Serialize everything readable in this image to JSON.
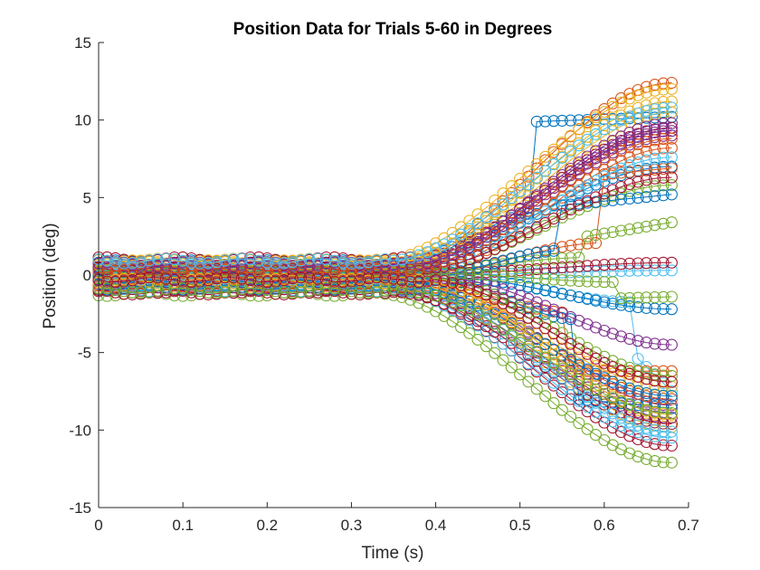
{
  "chart_data": {
    "type": "line",
    "title": "Position Data for Trials 5-60 in Degrees",
    "xlabel": "Time (s)",
    "ylabel": "Position (deg)",
    "xlim": [
      0,
      0.7
    ],
    "ylim": [
      -15,
      15
    ],
    "xticks": [
      0,
      0.1,
      0.2,
      0.3,
      0.4,
      0.5,
      0.6,
      0.7
    ],
    "xtick_labels": [
      "0",
      "0.1",
      "0.2",
      "0.3",
      "0.4",
      "0.5",
      "0.6",
      "0.7"
    ],
    "yticks": [
      -15,
      -10,
      -5,
      0,
      5,
      10,
      15
    ],
    "ytick_labels": [
      "-15",
      "-10",
      "-5",
      "0",
      "5",
      "10",
      "15"
    ],
    "grid": false,
    "legend": "none",
    "marker": "open circle",
    "sample_interval_s": 0.01,
    "end_time_s": 0.68,
    "color_order": [
      "#0072BD",
      "#D95319",
      "#EDB120",
      "#7E2F8E",
      "#77AC30",
      "#4DBEEE",
      "#A2142F"
    ],
    "series": [
      {
        "start": 0.8,
        "drift_start": 0.36,
        "jump_t": 0.52,
        "jump_to": 9.9,
        "final": 10.2
      },
      {
        "start": 0.3,
        "drift_start": 0.34,
        "jump_t": null,
        "jump_to": null,
        "final": 12.4
      },
      {
        "start": -0.6,
        "drift_start": 0.36,
        "jump_t": null,
        "jump_to": null,
        "final": -9.8
      },
      {
        "start": 0.5,
        "drift_start": 0.37,
        "jump_t": null,
        "jump_to": null,
        "final": 9.0
      },
      {
        "start": -1.2,
        "drift_start": 0.33,
        "jump_t": null,
        "jump_to": null,
        "final": -12.1
      },
      {
        "start": 0.2,
        "drift_start": 0.38,
        "jump_t": 0.64,
        "jump_to": -5.4,
        "final": -7.5
      },
      {
        "start": -1.0,
        "drift_start": 0.35,
        "jump_t": null,
        "jump_to": null,
        "final": -11.0
      },
      {
        "start": 0.6,
        "drift_start": 0.35,
        "jump_t": null,
        "jump_to": null,
        "final": 7.0
      },
      {
        "start": -0.3,
        "drift_start": 0.36,
        "jump_t": 0.6,
        "jump_to": 6.5,
        "final": 6.9
      },
      {
        "start": 0.9,
        "drift_start": 0.33,
        "jump_t": null,
        "jump_to": null,
        "final": 12.0
      },
      {
        "start": -0.5,
        "drift_start": 0.38,
        "jump_t": null,
        "jump_to": null,
        "final": -8.4
      },
      {
        "start": 0.4,
        "drift_start": 0.4,
        "jump_t": 0.58,
        "jump_to": 2.5,
        "final": 3.4
      },
      {
        "start": 0.0,
        "drift_start": 0.4,
        "jump_t": null,
        "jump_to": null,
        "final": 0.3
      },
      {
        "start": 0.1,
        "drift_start": 0.4,
        "jump_t": null,
        "jump_to": null,
        "final": 0.8
      },
      {
        "start": -0.2,
        "drift_start": 0.42,
        "jump_t": null,
        "jump_to": null,
        "final": -2.2
      },
      {
        "start": -0.4,
        "drift_start": 0.38,
        "jump_t": 0.56,
        "jump_to": -6.2,
        "final": -6.2
      },
      {
        "start": 0.7,
        "drift_start": 0.36,
        "jump_t": null,
        "jump_to": null,
        "final": 10.5
      },
      {
        "start": -0.8,
        "drift_start": 0.36,
        "jump_t": null,
        "jump_to": null,
        "final": -9.2
      },
      {
        "start": 0.3,
        "drift_start": 0.37,
        "jump_t": null,
        "jump_to": null,
        "final": 5.8
      },
      {
        "start": -0.9,
        "drift_start": 0.34,
        "jump_t": null,
        "jump_to": null,
        "final": -10.5
      },
      {
        "start": 1.0,
        "drift_start": 0.37,
        "jump_t": null,
        "jump_to": null,
        "final": 9.5
      },
      {
        "start": -0.1,
        "drift_start": 0.39,
        "jump_t": 0.57,
        "jump_to": -8.0,
        "final": -8.6
      },
      {
        "start": 0.2,
        "drift_start": 0.38,
        "jump_t": null,
        "jump_to": null,
        "final": 8.2
      },
      {
        "start": -0.7,
        "drift_start": 0.37,
        "jump_t": null,
        "jump_to": null,
        "final": -7.2
      },
      {
        "start": 0.5,
        "drift_start": 0.36,
        "jump_t": null,
        "jump_to": null,
        "final": 9.8
      },
      {
        "start": -0.3,
        "drift_start": 0.4,
        "jump_t": null,
        "jump_to": null,
        "final": -6.5
      },
      {
        "start": 0.6,
        "drift_start": 0.38,
        "jump_t": null,
        "jump_to": null,
        "final": 7.6
      },
      {
        "start": -1.1,
        "drift_start": 0.35,
        "jump_t": null,
        "jump_to": null,
        "final": -9.6
      },
      {
        "start": 0.0,
        "drift_start": 0.39,
        "jump_t": 0.55,
        "jump_to": 4.5,
        "final": 5.2
      },
      {
        "start": -0.6,
        "drift_start": 0.37,
        "jump_t": null,
        "jump_to": null,
        "final": -8.0
      },
      {
        "start": 0.8,
        "drift_start": 0.35,
        "jump_t": null,
        "jump_to": null,
        "final": 11.2
      },
      {
        "start": -0.2,
        "drift_start": 0.41,
        "jump_t": null,
        "jump_to": null,
        "final": -4.5
      },
      {
        "start": 0.1,
        "drift_start": 0.4,
        "jump_t": 0.62,
        "jump_to": -1.5,
        "final": -1.4
      },
      {
        "start": -0.5,
        "drift_start": 0.36,
        "jump_t": null,
        "jump_to": null,
        "final": -10.1
      },
      {
        "start": 0.4,
        "drift_start": 0.38,
        "jump_t": null,
        "jump_to": null,
        "final": 6.3
      },
      {
        "start": -0.8,
        "drift_start": 0.37,
        "jump_t": null,
        "jump_to": null,
        "final": -7.8
      },
      {
        "start": 0.3,
        "drift_start": 0.36,
        "jump_t": null,
        "jump_to": null,
        "final": 8.8
      },
      {
        "start": -0.4,
        "drift_start": 0.38,
        "jump_t": null,
        "jump_to": null,
        "final": -9.0
      },
      {
        "start": 0.7,
        "drift_start": 0.37,
        "jump_t": null,
        "jump_to": null,
        "final": 9.3
      },
      {
        "start": -1.0,
        "drift_start": 0.36,
        "jump_t": null,
        "jump_to": null,
        "final": -8.9
      },
      {
        "start": 0.9,
        "drift_start": 0.34,
        "jump_t": null,
        "jump_to": null,
        "final": 10.8
      },
      {
        "start": -0.3,
        "drift_start": 0.39,
        "jump_t": null,
        "jump_to": null,
        "final": -6.9
      }
    ]
  }
}
